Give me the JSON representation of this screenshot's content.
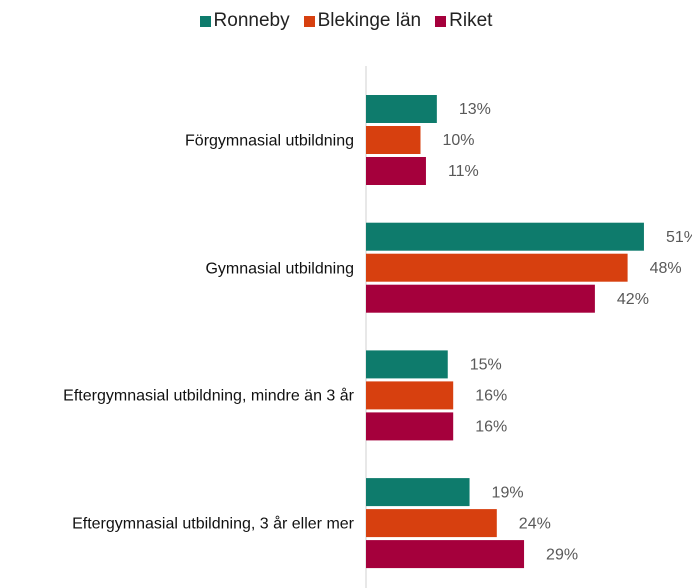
{
  "chart_data": {
    "type": "bar",
    "orientation": "horizontal",
    "categories": [
      "Förgymnasial utbildning",
      "Gymnasial utbildning",
      "Eftergymnasial utbildning, mindre än 3 år",
      "Eftergymnasial utbildning, 3 år eller mer"
    ],
    "series": [
      {
        "name": "Ronneby",
        "color": "#0e7b6c",
        "values": [
          13,
          51,
          15,
          19
        ],
        "value_labels": [
          "13%",
          "51%",
          "15%",
          "19%"
        ]
      },
      {
        "name": "Blekinge län",
        "color": "#d7400f",
        "values": [
          10,
          48,
          16,
          24
        ],
        "value_labels": [
          "10%",
          "48%",
          "16%",
          "24%"
        ]
      },
      {
        "name": "Riket",
        "color": "#a5003c",
        "values": [
          11,
          42,
          16,
          29
        ],
        "value_labels": [
          "11%",
          "42%",
          "16%",
          "29%"
        ]
      }
    ],
    "legend": "top"
  }
}
